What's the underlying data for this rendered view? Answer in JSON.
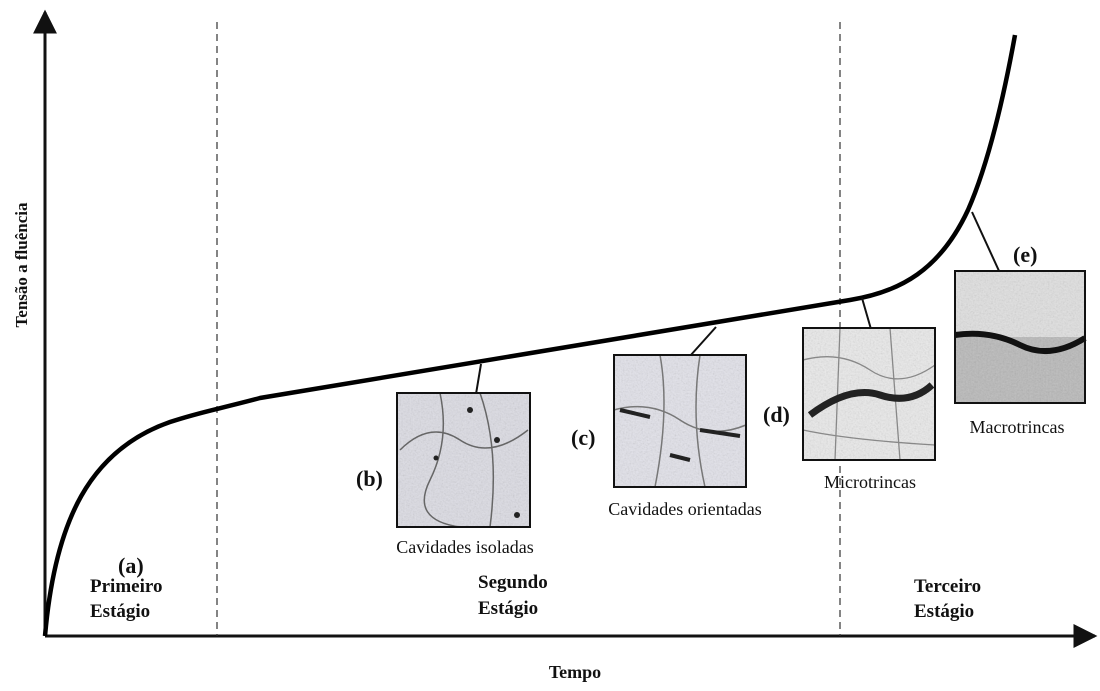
{
  "y_axis_label": "Tensão a fluência",
  "x_axis_label": "Tempo",
  "stages": [
    {
      "lines": [
        "Primeiro",
        "Estágio"
      ]
    },
    {
      "lines": [
        "Segundo",
        "Estágio"
      ]
    },
    {
      "lines": [
        "Terceiro",
        "Estágio"
      ]
    }
  ],
  "points": [
    {
      "label": "(a)"
    },
    {
      "label": "(b)",
      "caption": "Cavidades isoladas"
    },
    {
      "label": "(c)",
      "caption": "Cavidades orientadas"
    },
    {
      "label": "(d)",
      "caption": "Microtrincas"
    },
    {
      "label": "(e)",
      "caption": "Macrotrincas"
    }
  ]
}
